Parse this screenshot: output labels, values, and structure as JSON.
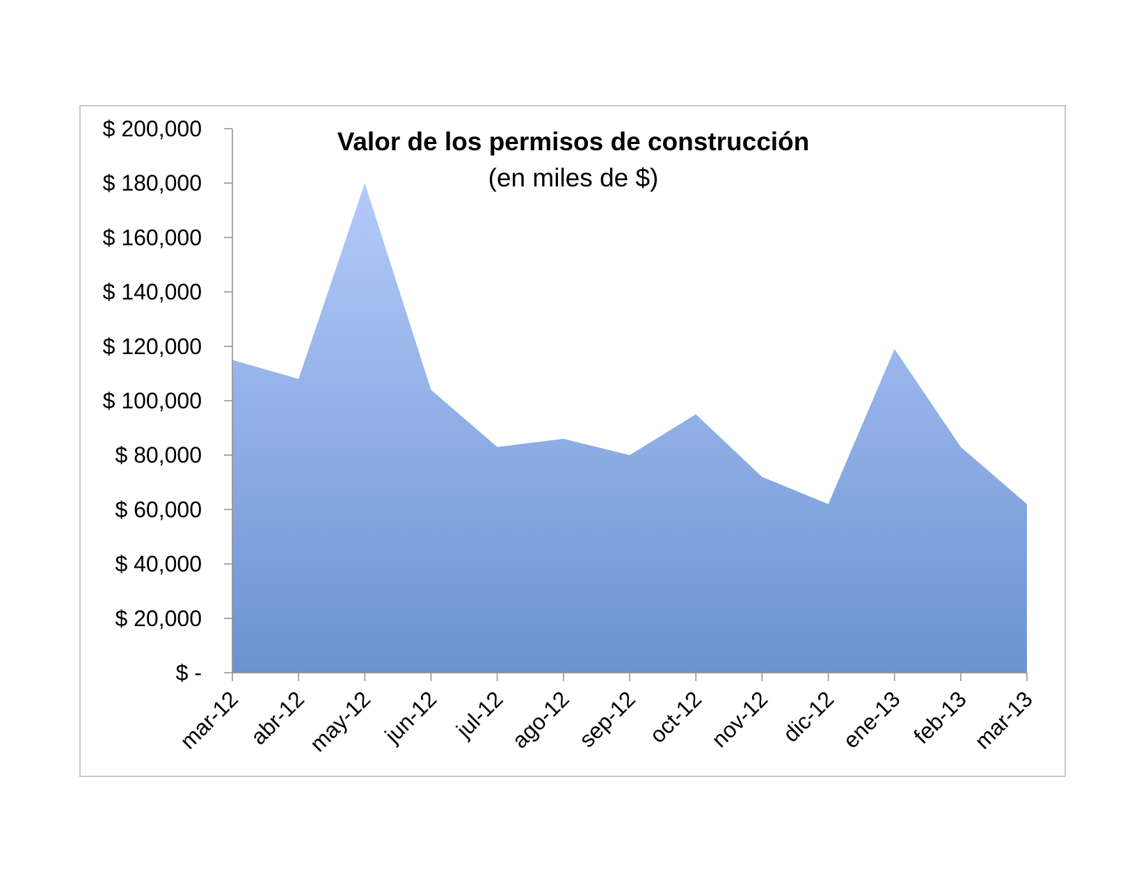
{
  "chart_data": {
    "type": "area",
    "title": "Valor de los permisos de construcción",
    "subtitle": "(en miles de $)",
    "xlabel": "",
    "ylabel": "",
    "categories": [
      "mar-12",
      "abr-12",
      "may-12",
      "jun-12",
      "jul-12",
      "ago-12",
      "sep-12",
      "oct-12",
      "nov-12",
      "dic-12",
      "ene-13",
      "feb-13",
      "mar-13"
    ],
    "values": [
      115000,
      108000,
      180000,
      104000,
      83000,
      86000,
      80000,
      95000,
      72000,
      62000,
      119000,
      83000,
      62000
    ],
    "ylim": [
      0,
      200000
    ],
    "yticks": [
      0,
      20000,
      40000,
      60000,
      80000,
      100000,
      120000,
      140000,
      160000,
      180000,
      200000
    ],
    "ytick_labels": [
      "$ -",
      "$ 20,000",
      "$ 40,000",
      "$ 60,000",
      "$ 80,000",
      "$ 100,000",
      "$ 120,000",
      "$ 140,000",
      "$ 160,000",
      "$ 180,000",
      "$ 200,000"
    ],
    "grid": false,
    "legend": "none",
    "fill_color_top": "#b4cafa",
    "fill_color_bottom": "#6b93d1",
    "axis_color": "#8c8c8c"
  }
}
